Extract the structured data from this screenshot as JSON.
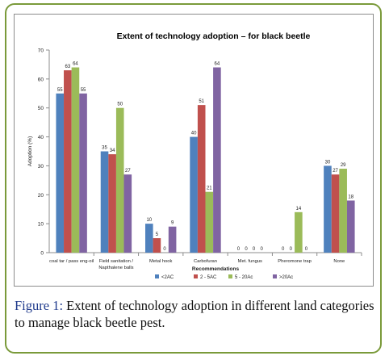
{
  "chart_data": {
    "type": "bar",
    "title": "Extent of technology adoption – for black beetle",
    "xlabel": "Recommendations",
    "ylabel": "Adoption (%)",
    "ylim": [
      0,
      70
    ],
    "yticks": [
      0,
      10,
      20,
      30,
      40,
      50,
      60,
      70
    ],
    "grid": false,
    "legend_position": "bottom",
    "categories": [
      "coal tar / pass eng-oil",
      "Field sanitation / Napthalene balls",
      "Metal hook",
      "Carbofuran",
      "Met. fungus",
      "Pheromone trap",
      "None"
    ],
    "category_lines": [
      [
        "coal tar / pass eng-oil"
      ],
      [
        "Field sanitation /",
        "Napthalene balls"
      ],
      [
        "Metal hook"
      ],
      [
        "Carbofuran"
      ],
      [
        "Met. fungus"
      ],
      [
        "Pheromone trap"
      ],
      [
        "None"
      ]
    ],
    "series": [
      {
        "name": "<2AC",
        "color": "#4f81bd",
        "values": [
          55,
          35,
          10,
          40,
          0,
          0,
          30
        ]
      },
      {
        "name": "2 - 5AC",
        "color": "#c0504d",
        "values": [
          63,
          34,
          5,
          51,
          0,
          0,
          27
        ]
      },
      {
        "name": "5 - 20Ac",
        "color": "#9bbb59",
        "values": [
          64,
          50,
          0,
          21,
          0,
          14,
          29
        ]
      },
      {
        "name": ">20Ac",
        "color": "#8064a2",
        "values": [
          55,
          27,
          9,
          64,
          0,
          0,
          18
        ]
      }
    ]
  },
  "caption": {
    "label": "Figure 1:",
    "text": " Extent of technology adoption in different land categories to manage black beetle pest."
  }
}
